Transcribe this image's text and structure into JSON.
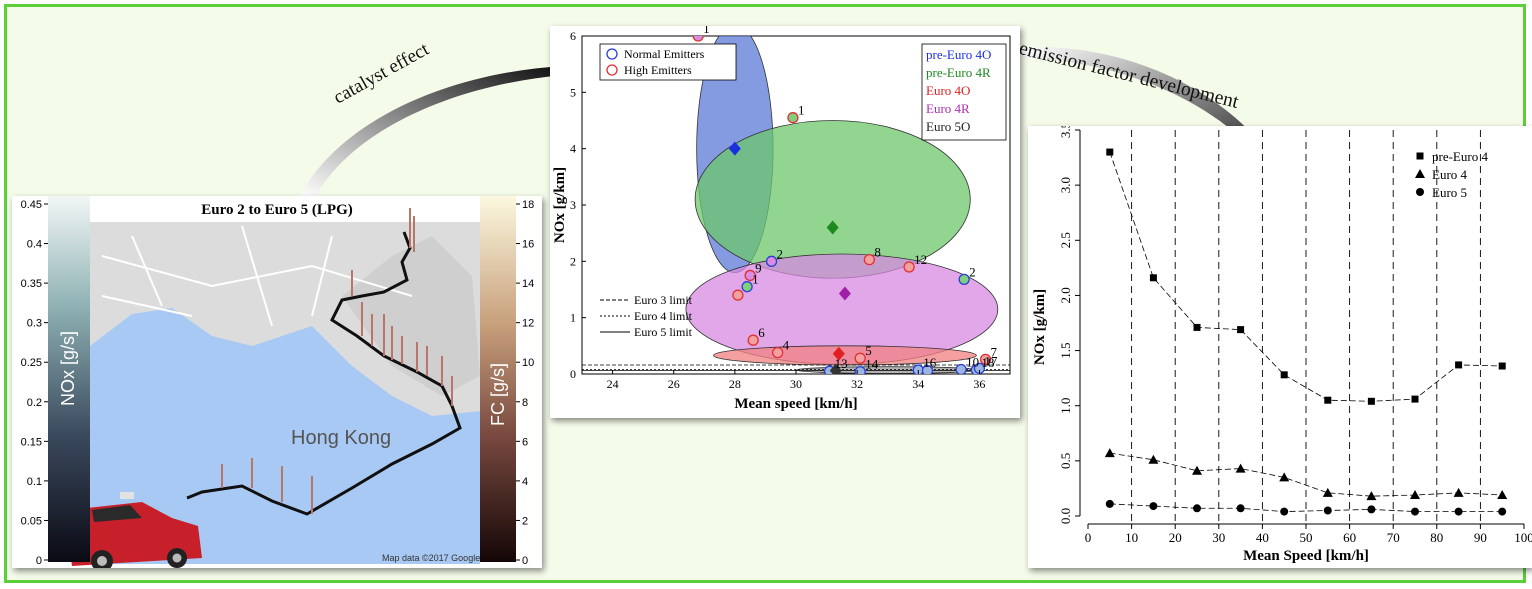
{
  "arrows": {
    "left_label": "catalyst effect",
    "right_label": "emission factor development"
  },
  "map_panel": {
    "title": "Euro 2 to Euro 5 (LPG)",
    "left_bar_label": "NOx [g/s]",
    "left_bar_ticks": [
      "0.45",
      "0.4",
      "0.35",
      "0.3",
      "0.25",
      "0.2",
      "0.15",
      "0.1",
      "0.05",
      "0"
    ],
    "right_bar_label": "FC [g/s]",
    "right_bar_ticks": [
      "18",
      "16",
      "14",
      "12",
      "10",
      "8",
      "6",
      "4",
      "2",
      "0"
    ],
    "place_label": "Hong Kong",
    "credit": "Map data ©2017 Google",
    "colors": {
      "water": "#a8c8f4",
      "land": "#dfdfdf",
      "taxi": "#c8202a"
    }
  },
  "chart_data": [
    {
      "type": "scatter",
      "title": "",
      "xlabel": "Mean speed [km/h]",
      "ylabel": "NOx [g/km]",
      "xlim": [
        23,
        37
      ],
      "ylim": [
        0,
        6
      ],
      "xticks": [
        24,
        26,
        28,
        30,
        32,
        34,
        36
      ],
      "yticks": [
        0,
        1,
        2,
        3,
        4,
        5,
        6
      ],
      "marker_legend": [
        {
          "name": "Normal Emitters",
          "color": "#2a3fd6"
        },
        {
          "name": "High Emitters",
          "color": "#e03030"
        }
      ],
      "group_legend": [
        {
          "name": "pre-Euro 4O",
          "color": "#1a2fe0"
        },
        {
          "name": "pre-Euro 4R",
          "color": "#1e8a1e"
        },
        {
          "name": "Euro 4O",
          "color": "#e02020"
        },
        {
          "name": "Euro 4R",
          "color": "#b02bb5"
        },
        {
          "name": "Euro 5O",
          "color": "#222222"
        }
      ],
      "limit_lines": [
        {
          "name": "Euro 3 limit",
          "value": 0.16
        },
        {
          "name": "Euro 4 limit",
          "value": 0.08
        },
        {
          "name": "Euro 5 limit",
          "value": 0.06
        }
      ],
      "ellipses": [
        {
          "group": "pre-Euro 4O",
          "cx": 28.0,
          "cy": 4.0,
          "rx": 1.25,
          "ry": 2.2,
          "fill": "#5b79d8"
        },
        {
          "group": "pre-Euro 4R",
          "cx": 31.2,
          "cy": 3.1,
          "rx": 4.5,
          "ry": 1.4,
          "fill": "#6cc76c"
        },
        {
          "group": "Euro 4R",
          "cx": 31.5,
          "cy": 1.15,
          "rx": 5.1,
          "ry": 0.98,
          "fill": "#d78ae2"
        },
        {
          "group": "Euro 4O",
          "cx": 31.6,
          "cy": 0.33,
          "rx": 4.3,
          "ry": 0.17,
          "fill": "#f08080"
        },
        {
          "group": "Euro 5O",
          "cx": 33.0,
          "cy": 0.07,
          "rx": 3.0,
          "ry": 0.06,
          "fill": "#9a9a9a"
        }
      ],
      "means": [
        {
          "group": "pre-Euro 4O",
          "x": 28.0,
          "y": 4.0,
          "color": "#1a2fe0"
        },
        {
          "group": "pre-Euro 4R",
          "x": 31.2,
          "y": 2.6,
          "color": "#1e8a1e"
        },
        {
          "group": "Euro 4R",
          "x": 31.6,
          "y": 1.43,
          "color": "#a020a8"
        },
        {
          "group": "Euro 4O",
          "x": 31.4,
          "y": 0.36,
          "color": "#e02020"
        },
        {
          "group": "Euro 5O",
          "x": 31.3,
          "y": 0.06,
          "color": "#333333"
        }
      ],
      "points": [
        {
          "x": 26.8,
          "y": 6.0,
          "label": "1",
          "fill": "#d98ce0",
          "edge": "#e03030"
        },
        {
          "x": 29.9,
          "y": 4.55,
          "label": "1",
          "fill": "#7fcf7f",
          "edge": "#e03030"
        },
        {
          "x": 29.2,
          "y": 2.0,
          "label": "2",
          "fill": "#d98ce0",
          "edge": "#2a3fd6"
        },
        {
          "x": 32.4,
          "y": 2.03,
          "label": "8",
          "fill": "#f2a0a0",
          "edge": "#e03030"
        },
        {
          "x": 33.7,
          "y": 1.9,
          "label": "12",
          "fill": "#f2a0a0",
          "edge": "#e03030"
        },
        {
          "x": 35.5,
          "y": 1.68,
          "label": "2",
          "fill": "#7fcf7f",
          "edge": "#2a3fd6"
        },
        {
          "x": 28.5,
          "y": 1.75,
          "label": "9",
          "fill": "#d98ce0",
          "edge": "#e03030"
        },
        {
          "x": 28.4,
          "y": 1.55,
          "label": "1",
          "fill": "#7fcf7f",
          "edge": "#2a3fd6"
        },
        {
          "x": 28.1,
          "y": 1.4,
          "label": "",
          "fill": "#f2a0a0",
          "edge": "#e03030"
        },
        {
          "x": 28.6,
          "y": 0.6,
          "label": "6",
          "fill": "#f2a0a0",
          "edge": "#e03030"
        },
        {
          "x": 29.4,
          "y": 0.38,
          "label": "4",
          "fill": "#f2a0a0",
          "edge": "#e03030"
        },
        {
          "x": 32.1,
          "y": 0.28,
          "label": "5",
          "fill": "#f2a0a0",
          "edge": "#e03030"
        },
        {
          "x": 31.1,
          "y": 0.05,
          "label": "13",
          "fill": "#9db6e0",
          "edge": "#2a3fd6"
        },
        {
          "x": 32.1,
          "y": 0.04,
          "label": "14",
          "fill": "#9db6e0",
          "edge": "#2a3fd6"
        },
        {
          "x": 34.0,
          "y": 0.07,
          "label": "16",
          "fill": "#9db6e0",
          "edge": "#2a3fd6"
        },
        {
          "x": 34.3,
          "y": 0.06,
          "label": "",
          "fill": "#9db6e0",
          "edge": "#2a3fd6"
        },
        {
          "x": 35.4,
          "y": 0.08,
          "label": "10",
          "fill": "#9db6e0",
          "edge": "#2a3fd6"
        },
        {
          "x": 35.9,
          "y": 0.07,
          "label": "18",
          "fill": "#9db6e0",
          "edge": "#2a3fd6"
        },
        {
          "x": 36.2,
          "y": 0.26,
          "label": "7",
          "fill": "#f2a0a0",
          "edge": "#e03030"
        },
        {
          "x": 36.0,
          "y": 0.1,
          "label": "17",
          "fill": "#9db6e0",
          "edge": "#2a3fd6"
        }
      ]
    },
    {
      "type": "line",
      "title": "",
      "xlabel": "Mean Speed [km/h]",
      "ylabel": "NOx [g/km]",
      "xlim": [
        0,
        100
      ],
      "ylim": [
        0,
        3.5
      ],
      "xticks": [
        0,
        10,
        20,
        30,
        40,
        50,
        60,
        70,
        80,
        90,
        100
      ],
      "yticks": [
        "0.0",
        "0.5",
        "1.0",
        "1.5",
        "2.0",
        "2.5",
        "3.0",
        "3.5"
      ],
      "vertical_dashed_lines": [
        10,
        20,
        30,
        40,
        50,
        60,
        70,
        80,
        90
      ],
      "x": [
        5,
        15,
        25,
        35,
        45,
        55,
        65,
        75,
        85,
        95
      ],
      "series": [
        {
          "name": "pre-Euro 4",
          "marker": "square",
          "values": [
            3.3,
            2.16,
            1.71,
            1.69,
            1.28,
            1.05,
            1.04,
            1.06,
            1.37,
            1.36
          ]
        },
        {
          "name": "Euro 4",
          "marker": "triangle",
          "values": [
            0.57,
            0.51,
            0.41,
            0.43,
            0.35,
            0.21,
            0.18,
            0.19,
            0.21,
            0.19
          ]
        },
        {
          "name": "Euro 5",
          "marker": "circle",
          "values": [
            0.11,
            0.09,
            0.07,
            0.07,
            0.04,
            0.05,
            0.06,
            0.04,
            0.04,
            0.04
          ]
        }
      ]
    }
  ]
}
